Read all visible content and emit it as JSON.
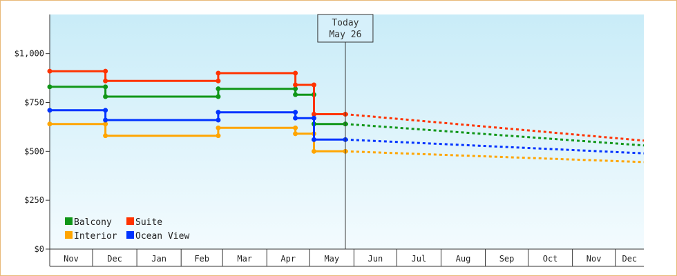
{
  "chart_data": {
    "type": "line",
    "x_unit": "date",
    "ylim": [
      0,
      1200
    ],
    "y_ticks": [
      0,
      250,
      500,
      750,
      1000
    ],
    "y_tick_labels": [
      "$0",
      "$250",
      "$500",
      "$750",
      "$1,000"
    ],
    "x_range": [
      "2023-11-01",
      "2024-12-21"
    ],
    "month_ticks": [
      {
        "label": "Nov",
        "start": "2023-11-01"
      },
      {
        "label": "Dec",
        "start": "2023-12-01"
      },
      {
        "label": "Jan",
        "start": "2024-01-01"
      },
      {
        "label": "Feb",
        "start": "2024-02-01"
      },
      {
        "label": "Mar",
        "start": "2024-03-01"
      },
      {
        "label": "Apr",
        "start": "2024-04-01"
      },
      {
        "label": "May",
        "start": "2024-05-01"
      },
      {
        "label": "Jun",
        "start": "2024-06-01"
      },
      {
        "label": "Jul",
        "start": "2024-07-01"
      },
      {
        "label": "Aug",
        "start": "2024-08-01"
      },
      {
        "label": "Sep",
        "start": "2024-09-01"
      },
      {
        "label": "Oct",
        "start": "2024-10-01"
      },
      {
        "label": "Nov",
        "start": "2024-11-01"
      },
      {
        "label": "Dec",
        "start": "2024-12-01"
      }
    ],
    "today": {
      "line1": "Today",
      "line2": "May 26",
      "date": "2024-05-26"
    },
    "grid": false,
    "legend_position": "bottom-left",
    "series": [
      {
        "name": "Balcony",
        "color": "#109618",
        "points": [
          [
            "2023-11-01",
            830
          ],
          [
            "2023-12-10",
            830
          ],
          [
            "2023-12-10",
            780
          ],
          [
            "2024-02-27",
            780
          ],
          [
            "2024-02-27",
            820
          ],
          [
            "2024-04-21",
            820
          ],
          [
            "2024-04-21",
            790
          ],
          [
            "2024-05-04",
            790
          ],
          [
            "2024-05-04",
            640
          ],
          [
            "2024-05-26",
            640
          ]
        ],
        "forecast": [
          [
            "2024-05-26",
            640
          ],
          [
            "2024-12-21",
            530
          ]
        ]
      },
      {
        "name": "Suite",
        "color": "#ff3300",
        "points": [
          [
            "2023-11-01",
            910
          ],
          [
            "2023-12-10",
            910
          ],
          [
            "2023-12-10",
            860
          ],
          [
            "2024-02-27",
            860
          ],
          [
            "2024-02-27",
            900
          ],
          [
            "2024-04-21",
            900
          ],
          [
            "2024-04-21",
            840
          ],
          [
            "2024-05-04",
            840
          ],
          [
            "2024-05-04",
            690
          ],
          [
            "2024-05-26",
            690
          ]
        ],
        "forecast": [
          [
            "2024-05-26",
            690
          ],
          [
            "2024-12-21",
            555
          ]
        ]
      },
      {
        "name": "Interior",
        "color": "#ffa500",
        "points": [
          [
            "2023-11-01",
            640
          ],
          [
            "2023-12-10",
            640
          ],
          [
            "2023-12-10",
            580
          ],
          [
            "2024-02-27",
            580
          ],
          [
            "2024-02-27",
            620
          ],
          [
            "2024-04-21",
            620
          ],
          [
            "2024-04-21",
            590
          ],
          [
            "2024-05-04",
            590
          ],
          [
            "2024-05-04",
            500
          ],
          [
            "2024-05-26",
            500
          ]
        ],
        "forecast": [
          [
            "2024-05-26",
            500
          ],
          [
            "2024-12-21",
            445
          ]
        ]
      },
      {
        "name": "Ocean View",
        "color": "#0033ff",
        "points": [
          [
            "2023-11-01",
            710
          ],
          [
            "2023-12-10",
            710
          ],
          [
            "2023-12-10",
            660
          ],
          [
            "2024-02-27",
            660
          ],
          [
            "2024-02-27",
            700
          ],
          [
            "2024-04-21",
            700
          ],
          [
            "2024-04-21",
            670
          ],
          [
            "2024-05-04",
            670
          ],
          [
            "2024-05-04",
            560
          ],
          [
            "2024-05-26",
            560
          ]
        ],
        "forecast": [
          [
            "2024-05-26",
            560
          ],
          [
            "2024-12-21",
            490
          ]
        ]
      }
    ]
  }
}
